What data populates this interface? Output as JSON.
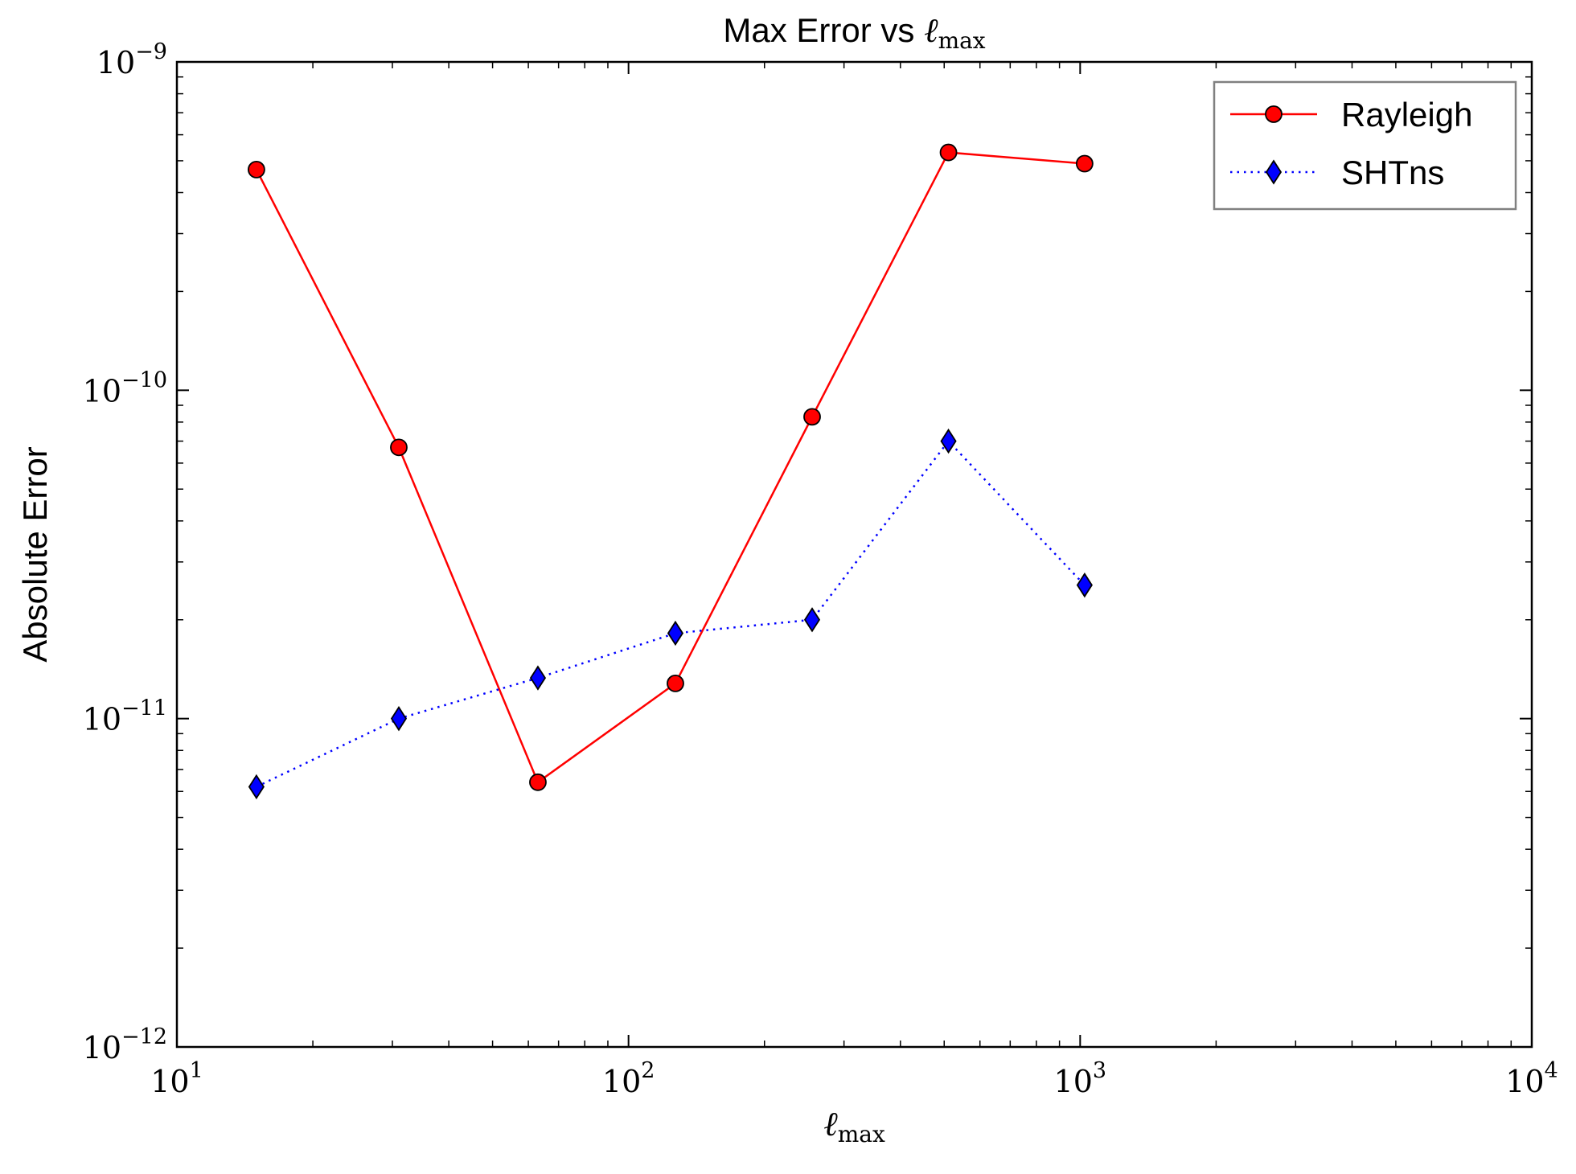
{
  "chart_data": {
    "type": "line",
    "title_text": "Max Error vs ",
    "title_math_base": "ℓ",
    "title_math_sub": "max",
    "xlabel_base": "ℓ",
    "xlabel_sub": "max",
    "ylabel": "Absolute Error",
    "x_scale": "log",
    "y_scale": "log",
    "xlim": [
      10,
      10000
    ],
    "ylim": [
      1e-12,
      1e-09
    ],
    "x_ticks": [
      {
        "value": 10,
        "base": "10",
        "exp": "1"
      },
      {
        "value": 100,
        "base": "10",
        "exp": "2"
      },
      {
        "value": 1000,
        "base": "10",
        "exp": "3"
      },
      {
        "value": 10000,
        "base": "10",
        "exp": "4"
      }
    ],
    "y_ticks": [
      {
        "value": 1e-12,
        "base": "10",
        "exp": "−12"
      },
      {
        "value": 1e-11,
        "base": "10",
        "exp": "−11"
      },
      {
        "value": 1e-10,
        "base": "10",
        "exp": "−10"
      },
      {
        "value": 1e-09,
        "base": "10",
        "exp": "−9"
      }
    ],
    "grid": false,
    "legend_position": "top-right",
    "series": [
      {
        "name": "Rayleigh",
        "color": "#ff0000",
        "line_style": "solid",
        "marker": "circle",
        "x": [
          15,
          31,
          63,
          127,
          255,
          511,
          1023
        ],
        "y": [
          4.7e-10,
          6.7e-11,
          6.4e-12,
          1.28e-11,
          8.3e-11,
          5.3e-10,
          4.9e-10
        ]
      },
      {
        "name": "SHTns",
        "color": "#0000ff",
        "line_style": "dotted",
        "marker": "diamond",
        "x": [
          15,
          31,
          63,
          127,
          255,
          511,
          1023
        ],
        "y": [
          6.2e-12,
          1e-11,
          1.33e-11,
          1.82e-11,
          2e-11,
          7e-11,
          2.55e-11
        ]
      }
    ]
  }
}
